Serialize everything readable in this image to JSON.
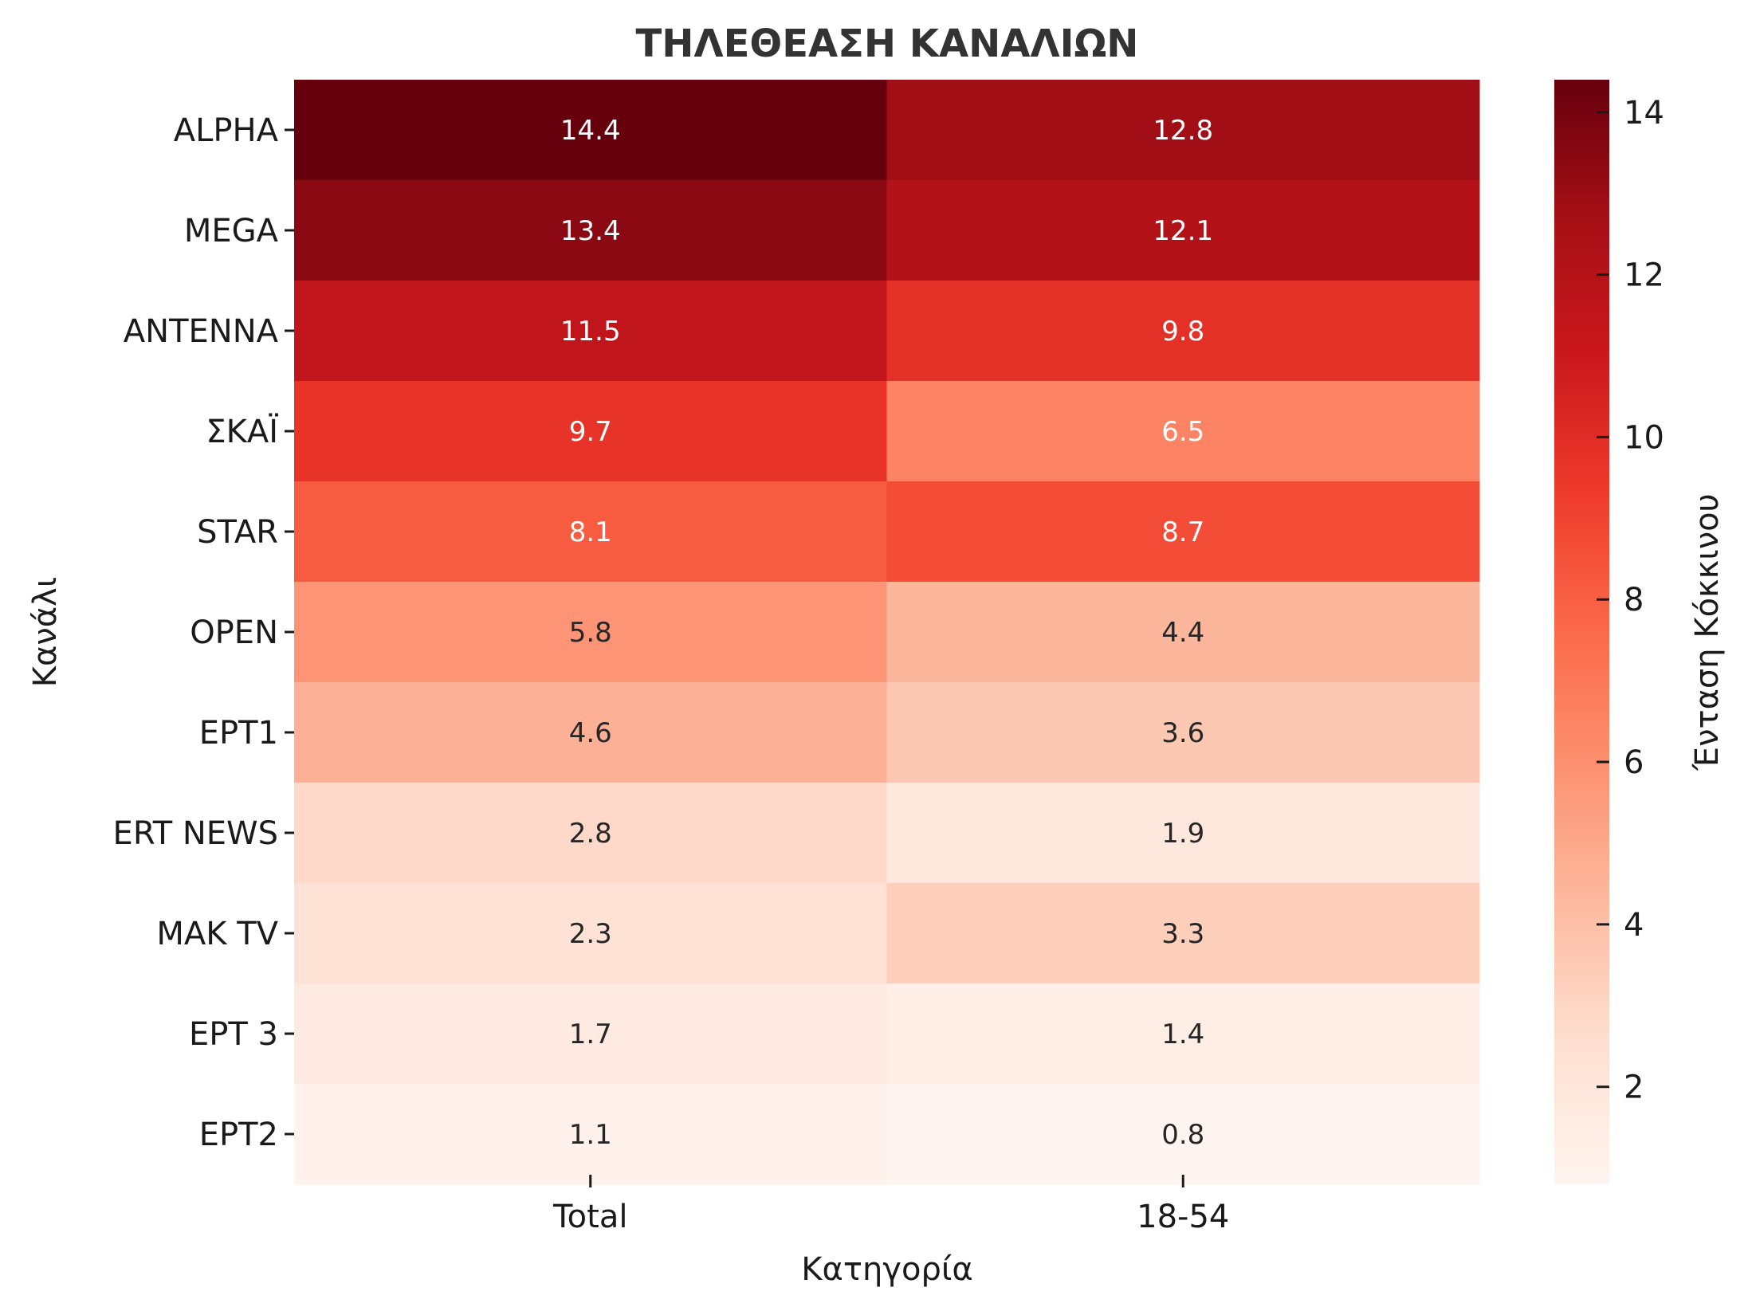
{
  "chart_data": {
    "type": "heatmap",
    "title": "ΤΗΛΕΘΕΑΣΗ ΚΑΝΑΛΙΩΝ",
    "xlabel": "Κατηγορία",
    "ylabel": "Κανάλι",
    "columns": [
      "Total",
      "18-54"
    ],
    "rows": [
      "ALPHA",
      "MEGA",
      "ANTENNA",
      "ΣΚΑΪ",
      "STAR",
      "OPEN",
      "EPT1",
      "ERT NEWS",
      "MAK TV",
      "EPT 3",
      "EPT2"
    ],
    "values": [
      [
        14.4,
        12.8
      ],
      [
        13.4,
        12.1
      ],
      [
        11.5,
        9.8
      ],
      [
        9.7,
        6.5
      ],
      [
        8.1,
        8.7
      ],
      [
        5.8,
        4.4
      ],
      [
        4.6,
        3.6
      ],
      [
        2.8,
        1.9
      ],
      [
        2.3,
        3.3
      ],
      [
        1.7,
        1.4
      ],
      [
        1.1,
        0.8
      ]
    ],
    "annotation_format": "0.1f",
    "colormap": "Reds",
    "color_range": [
      0.8,
      14.4
    ],
    "colorbar": {
      "label": "Ένταση Κόκκινου",
      "ticks": [
        2,
        4,
        6,
        8,
        10,
        12,
        14
      ],
      "tick_labels": [
        "2",
        "4",
        "6",
        "8",
        "10",
        "12",
        "14"
      ]
    },
    "colors": {
      "title": "#333333",
      "text_dark": "#262626",
      "text_light": "#ffffff"
    }
  }
}
